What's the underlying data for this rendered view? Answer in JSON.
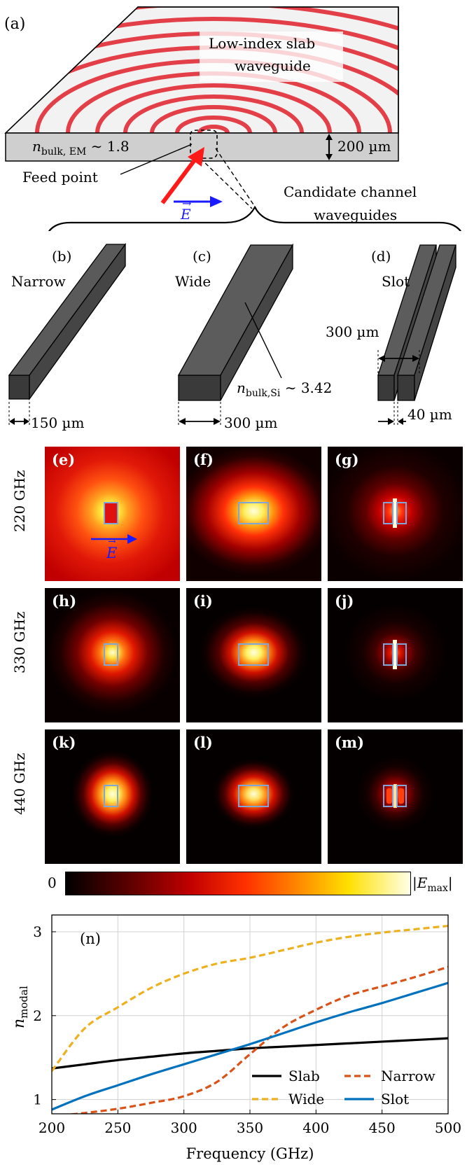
{
  "figure": {
    "panel_a": {
      "tag": "(a)",
      "slab_label_line1": "Low-index slab",
      "slab_label_line2": "waveguide",
      "n_bulk_em": "n",
      "n_bulk_em_sub": "bulk, EM",
      "n_bulk_em_value": " ∼ 1.8",
      "thickness": "200 µm",
      "feed_point": "Feed point",
      "e_field": "E",
      "candidate_line1": "Candidate channel",
      "candidate_line2": "waveguides"
    },
    "panel_b": {
      "tag": "(b)",
      "name": "Narrow",
      "width": "150 µm"
    },
    "panel_c": {
      "tag": "(c)",
      "name": "Wide",
      "width": "300 µm",
      "n_si": "n",
      "n_si_sub": "bulk,Si",
      "n_si_value": " ∼ 3.42"
    },
    "panel_d": {
      "tag": "(d)",
      "name": "Slot",
      "outer_width": "300 µm",
      "gap": "40 µm"
    },
    "field_maps": {
      "rows": [
        "220 GHz",
        "330 GHz",
        "440 GHz"
      ],
      "letters": [
        [
          "(e)",
          "(f)",
          "(g)"
        ],
        [
          "(h)",
          "(i)",
          "(j)"
        ],
        [
          "(k)",
          "(l)",
          "(m)"
        ]
      ],
      "e_field": "E",
      "colorbar_min": "0",
      "colorbar_max": "|E",
      "colorbar_max_sub": "max",
      "colorbar_max_end": "|",
      "colormap": [
        "#000000",
        "#5a0000",
        "#c00000",
        "#ff3000",
        "#ff8000",
        "#ffe000",
        "#ffffe8"
      ],
      "waveguide_outline_color": "#7fa6d9"
    },
    "panel_n": {
      "tag": "(n)"
    }
  },
  "chart_data": {
    "type": "line",
    "title": "",
    "xlabel": "Frequency (GHz)",
    "ylabel": "n",
    "ylabel_sub": "modal",
    "xlim": [
      200,
      500
    ],
    "ylim": [
      0.83,
      3.2
    ],
    "xticks": [
      200,
      250,
      300,
      350,
      400,
      450,
      500
    ],
    "yticks": [
      1,
      2,
      3
    ],
    "grid": true,
    "legend_position": "bottom-right",
    "x": [
      200,
      225,
      250,
      275,
      300,
      325,
      350,
      375,
      400,
      425,
      450,
      475,
      500
    ],
    "series": [
      {
        "name": "Slab",
        "color": "#000000",
        "dash": "solid",
        "values": [
          1.37,
          1.42,
          1.47,
          1.51,
          1.55,
          1.58,
          1.61,
          1.63,
          1.65,
          1.67,
          1.69,
          1.71,
          1.73
        ]
      },
      {
        "name": "Narrow",
        "color": "#d95319",
        "dash": "dashed",
        "values": [
          0.8,
          0.84,
          0.89,
          0.96,
          1.04,
          1.21,
          1.54,
          1.86,
          2.07,
          2.24,
          2.35,
          2.46,
          2.58
        ]
      },
      {
        "name": "Wide",
        "color": "#edb120",
        "dash": "dashed",
        "values": [
          1.34,
          1.85,
          2.1,
          2.33,
          2.5,
          2.62,
          2.69,
          2.78,
          2.87,
          2.94,
          2.99,
          3.03,
          3.07
        ]
      },
      {
        "name": "Slot",
        "color": "#0072bd",
        "dash": "solid",
        "values": [
          0.88,
          1.04,
          1.17,
          1.3,
          1.42,
          1.54,
          1.66,
          1.79,
          1.92,
          2.04,
          2.15,
          2.27,
          2.39
        ]
      }
    ]
  }
}
